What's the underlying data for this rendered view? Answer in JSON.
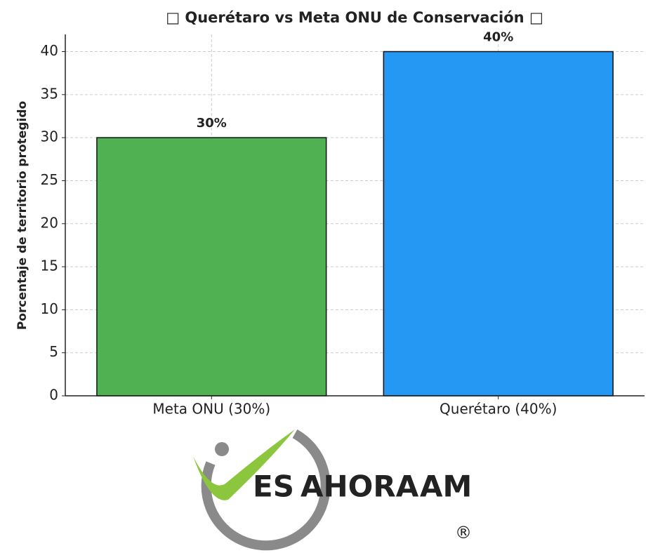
{
  "chart_data": {
    "type": "bar",
    "title": "□ Querétaro vs Meta ONU de Conservación □",
    "y_label": "Porcentaje de territorio protegido",
    "categories": [
      "Meta ONU (30%)",
      "Querétaro (40%)"
    ],
    "values": [
      30,
      40
    ],
    "value_labels": [
      "30%",
      "40%"
    ],
    "colors": [
      "#4caf50",
      "#2196f3"
    ],
    "ylim": [
      0,
      42
    ],
    "yticks": [
      0,
      5,
      10,
      15,
      20,
      25,
      30,
      35,
      40
    ],
    "grid": true
  },
  "watermark": {
    "word_1": "ES",
    "word_2": "AHORA",
    "word_3": "AM",
    "mark": "®"
  }
}
